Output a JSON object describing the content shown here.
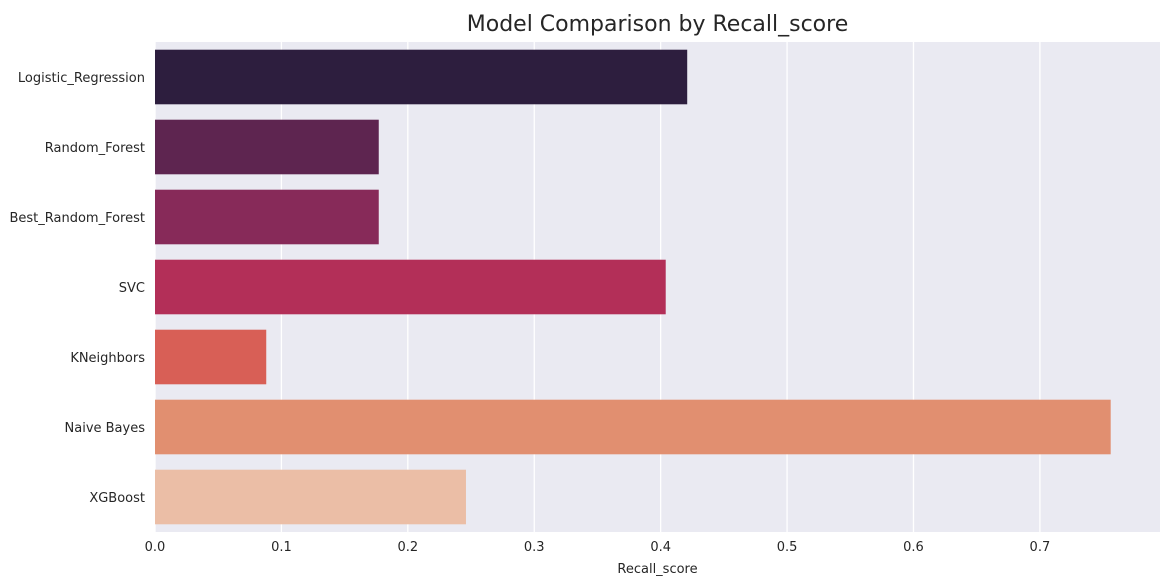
{
  "chart_data": {
    "type": "bar",
    "orientation": "horizontal",
    "title": "Model Comparison by Recall_score",
    "xlabel": "Recall_score",
    "ylabel": "",
    "categories": [
      "Logistic_Regression",
      "Random_Forest",
      "Best_Random_Forest",
      "SVC",
      "KNeighbors",
      "Naive Bayes",
      "XGBoost"
    ],
    "values": [
      0.421,
      0.177,
      0.177,
      0.404,
      0.088,
      0.756,
      0.246
    ],
    "xlim": [
      0,
      0.795
    ],
    "xticks": [
      "0.0",
      "0.1",
      "0.2",
      "0.3",
      "0.4",
      "0.5",
      "0.6",
      "0.7"
    ],
    "grid": true,
    "legend": "none",
    "colors": [
      "#2d1e3e",
      "#5e2550",
      "#872a59",
      "#b32f58",
      "#d85f56",
      "#e18f70",
      "#ebbea6"
    ],
    "background": "#eaeaf2"
  }
}
